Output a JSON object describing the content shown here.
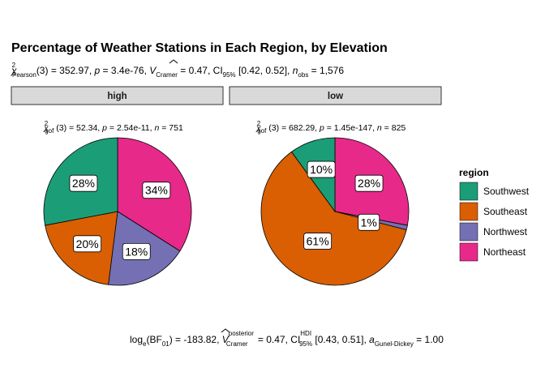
{
  "chart_data": {
    "type": "pie",
    "title": "Percentage of Weather Stations in Each Region, by Elevation",
    "subtitle": {
      "stat_symbol": "χ",
      "stat_sup": "2",
      "stat_sub": "Pearson",
      "body_a": "(3) = 352.97, ",
      "p_label": "p",
      "p_value": " = 3.4e-76, ",
      "v_label": "V",
      "v_sub": "Cramer",
      "v_value": " = 0.47, CI",
      "ci_sub": "95%",
      "ci_value": " [0.42, 0.52], ",
      "n_label": "n",
      "n_sub": "obs",
      "n_value": " = 1,576"
    },
    "caption": {
      "a": "log",
      "a_sub": "e",
      "b": "(BF",
      "b_sub": "01",
      "c": ") = -183.82, ",
      "v_label": "V",
      "v_sup": "posterior",
      "v_sub": "Cramer",
      "d": " = 0.47, CI",
      "ci_sup": "HDI",
      "ci_sub": "95%",
      "e": " [0.43, 0.51], ",
      "a_label": "a",
      "a_label_sub": "Gunel-Dickey",
      "f": " = 1.00"
    },
    "legend": {
      "title": "region",
      "items": [
        {
          "name": "Southwest",
          "color": "#1B9E77"
        },
        {
          "name": "Southeast",
          "color": "#D95F02"
        },
        {
          "name": "Northwest",
          "color": "#7570B3"
        },
        {
          "name": "Northeast",
          "color": "#E7298A"
        }
      ]
    },
    "facets": [
      {
        "label": "high",
        "stat": {
          "sym": "χ",
          "sup": "2",
          "sub": "gof",
          "body": " (3) = 52.34, ",
          "p": "p",
          "p_val": " = 2.54e-11, ",
          "n": "n",
          "n_val": " = 751"
        },
        "slices": [
          {
            "region": "Southwest",
            "value": 28,
            "label": "28%"
          },
          {
            "region": "Southeast",
            "value": 20,
            "label": "20%"
          },
          {
            "region": "Northwest",
            "value": 18,
            "label": "18%"
          },
          {
            "region": "Northeast",
            "value": 34,
            "label": "34%"
          }
        ]
      },
      {
        "label": "low",
        "stat": {
          "sym": "χ",
          "sup": "2",
          "sub": "gof",
          "body": " (3) = 682.29, ",
          "p": "p",
          "p_val": " = 1.45e-147, ",
          "n": "n",
          "n_val": " = 825"
        },
        "slices": [
          {
            "region": "Southwest",
            "value": 10,
            "label": "10%"
          },
          {
            "region": "Southeast",
            "value": 61,
            "label": "61%"
          },
          {
            "region": "Northwest",
            "value": 1,
            "label": "1%"
          },
          {
            "region": "Northeast",
            "value": 28,
            "label": "28%"
          }
        ]
      }
    ]
  }
}
